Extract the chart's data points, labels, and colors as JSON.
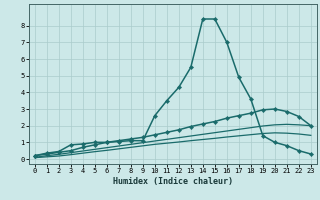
{
  "background_color": "#cce8e8",
  "grid_color": "#aacccc",
  "line_color": "#1a6b6b",
  "xlabel": "Humidex (Indice chaleur)",
  "xlim": [
    -0.5,
    23.5
  ],
  "ylim": [
    -0.3,
    9.3
  ],
  "xticks": [
    0,
    1,
    2,
    3,
    4,
    5,
    6,
    7,
    8,
    9,
    10,
    11,
    12,
    13,
    14,
    15,
    16,
    17,
    18,
    19,
    20,
    21,
    22,
    23
  ],
  "yticks": [
    0,
    1,
    2,
    3,
    4,
    5,
    6,
    7,
    8
  ],
  "series": [
    {
      "x": [
        0,
        1,
        2,
        3,
        4,
        5,
        6,
        7,
        8,
        9,
        10,
        11,
        12,
        13,
        14,
        15,
        16,
        17,
        18,
        19,
        20,
        21,
        22,
        23
      ],
      "y": [
        0.2,
        0.35,
        0.45,
        0.85,
        0.9,
        1.0,
        1.0,
        1.05,
        1.1,
        1.1,
        2.6,
        3.5,
        4.3,
        5.5,
        8.4,
        8.4,
        7.0,
        4.9,
        3.6,
        1.4,
        1.0,
        0.8,
        0.5,
        0.3
      ],
      "marker": "D",
      "markersize": 2.2,
      "linewidth": 1.1
    },
    {
      "x": [
        0,
        1,
        2,
        3,
        4,
        5,
        6,
        7,
        8,
        9,
        10,
        11,
        12,
        13,
        14,
        15,
        16,
        17,
        18,
        19,
        20,
        21,
        22,
        23
      ],
      "y": [
        0.2,
        0.3,
        0.4,
        0.5,
        0.7,
        0.85,
        1.0,
        1.1,
        1.2,
        1.3,
        1.45,
        1.6,
        1.75,
        1.95,
        2.1,
        2.25,
        2.45,
        2.6,
        2.75,
        2.95,
        3.0,
        2.85,
        2.55,
        2.0
      ],
      "marker": "D",
      "markersize": 2.2,
      "linewidth": 1.1
    },
    {
      "x": [
        0,
        1,
        2,
        3,
        4,
        5,
        6,
        7,
        8,
        9,
        10,
        11,
        12,
        13,
        14,
        15,
        16,
        17,
        18,
        19,
        20,
        21,
        22,
        23
      ],
      "y": [
        0.1,
        0.2,
        0.28,
        0.38,
        0.48,
        0.58,
        0.68,
        0.78,
        0.88,
        0.98,
        1.08,
        1.18,
        1.28,
        1.38,
        1.48,
        1.58,
        1.68,
        1.78,
        1.88,
        1.98,
        2.05,
        2.08,
        2.05,
        2.0
      ],
      "marker": null,
      "linewidth": 0.9
    },
    {
      "x": [
        0,
        1,
        2,
        3,
        4,
        5,
        6,
        7,
        8,
        9,
        10,
        11,
        12,
        13,
        14,
        15,
        16,
        17,
        18,
        19,
        20,
        21,
        22,
        23
      ],
      "y": [
        0.08,
        0.13,
        0.18,
        0.26,
        0.35,
        0.44,
        0.52,
        0.61,
        0.7,
        0.79,
        0.88,
        0.95,
        1.02,
        1.1,
        1.17,
        1.24,
        1.32,
        1.39,
        1.46,
        1.53,
        1.57,
        1.55,
        1.5,
        1.42
      ],
      "marker": null,
      "linewidth": 0.9
    }
  ]
}
